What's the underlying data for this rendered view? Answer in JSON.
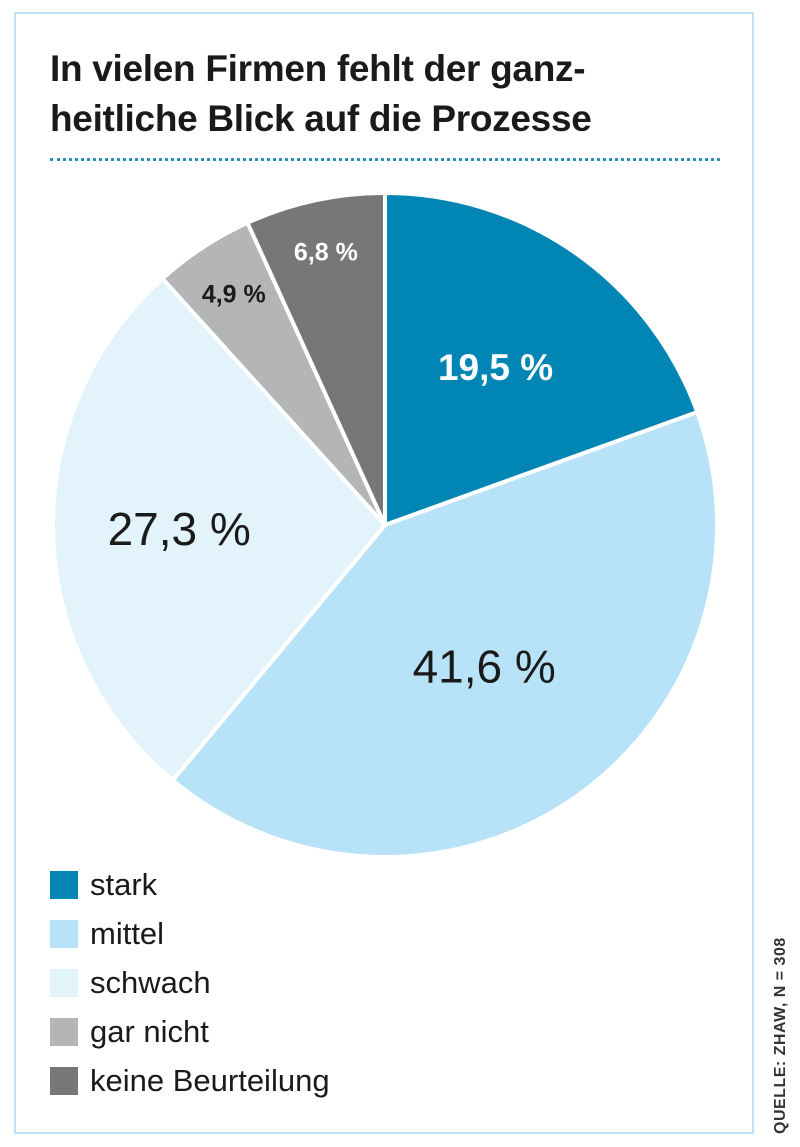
{
  "title": "In vielen Firmen fehlt der ganz-heitliche Blick auf die Prozesse",
  "title_lines": [
    "In vielen Firmen fehlt der ganz-",
    "heitliche Blick auf die Prozesse"
  ],
  "source": "QUELLE: ZHAW, N = 308",
  "chart_data": {
    "type": "pie",
    "title": "In vielen Firmen fehlt der ganz-heitliche Blick auf die Prozesse",
    "unit": "%",
    "start_angle": "12 o'clock",
    "direction": "clockwise",
    "slices": [
      {
        "name": "stark",
        "value": 19.5,
        "label": "19,5 %",
        "color": "#0085b4",
        "label_color": "#ffffff"
      },
      {
        "name": "mittel",
        "value": 41.6,
        "label": "41,6 %",
        "color": "#b8e2f7",
        "label_color": "#1a1a1a"
      },
      {
        "name": "schwach",
        "value": 27.3,
        "label": "27,3 %",
        "color": "#e2f3fc",
        "label_color": "#1a1a1a"
      },
      {
        "name": "gar nicht",
        "value": 4.9,
        "label": "4,9 %",
        "color": "#b4b5b7",
        "label_color": "#1a1a1a"
      },
      {
        "name": "keine Beurteilung",
        "value": 6.8,
        "label": "6,8 %",
        "color": "#77777a",
        "label_color": "#ffffff"
      }
    ],
    "legend": [
      "stark",
      "mittel",
      "schwach",
      "gar nicht",
      "keine Beurteilung"
    ],
    "legend_position": "bottom-left"
  }
}
